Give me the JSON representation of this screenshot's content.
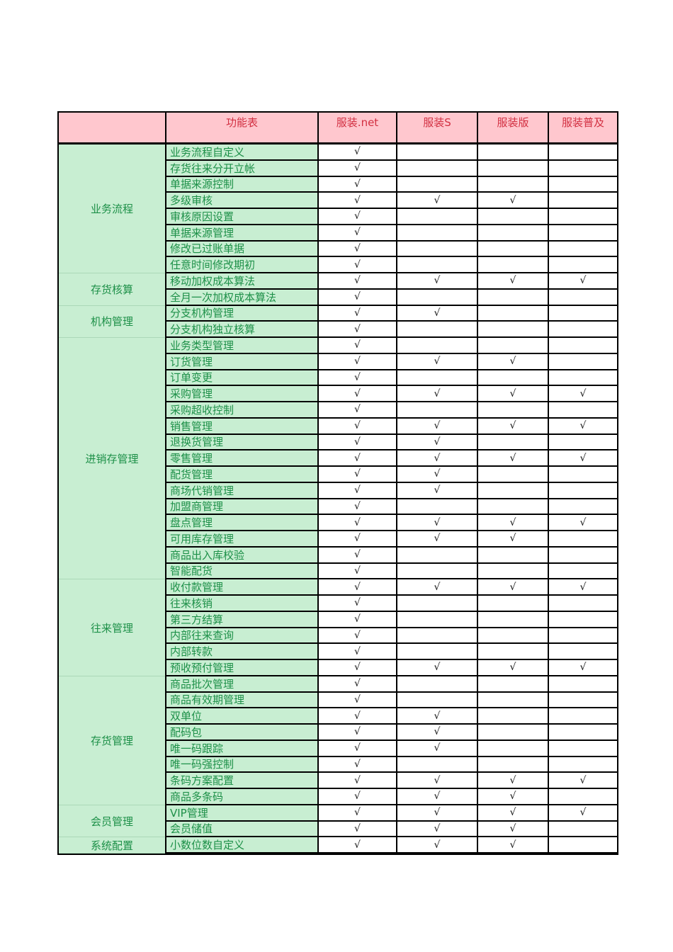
{
  "colors": {
    "header_bg": "#ffc7ce",
    "header_text": "#d22f41",
    "group_bg": "#c8eed2",
    "group_text": "#1d9048",
    "group_divider": "#abd8b8",
    "check_color": "#111111",
    "border": "#000000"
  },
  "table": {
    "header": {
      "corner": "",
      "feature_col": "功能表",
      "products": [
        "服装.net",
        "服装S",
        "服装版",
        "服装普及"
      ]
    },
    "check_symbol": "√",
    "groups": [
      {
        "label": "业务流程",
        "rows": [
          {
            "feature": "业务流程自定义",
            "checks": [
              1,
              0,
              0,
              0
            ]
          },
          {
            "feature": "存货往来分开立帐",
            "checks": [
              1,
              0,
              0,
              0
            ]
          },
          {
            "feature": "单据来源控制",
            "checks": [
              1,
              0,
              0,
              0
            ]
          },
          {
            "feature": "多级审核",
            "checks": [
              1,
              1,
              1,
              0
            ]
          },
          {
            "feature": "审核原因设置",
            "checks": [
              1,
              0,
              0,
              0
            ]
          },
          {
            "feature": "单据来源管理",
            "checks": [
              1,
              0,
              0,
              0
            ]
          },
          {
            "feature": "修改已过账单据",
            "checks": [
              1,
              0,
              0,
              0
            ]
          },
          {
            "feature": "任意时间修改期初",
            "checks": [
              1,
              0,
              0,
              0
            ]
          }
        ]
      },
      {
        "label": "存货核算",
        "rows": [
          {
            "feature": "移动加权成本算法",
            "checks": [
              1,
              1,
              1,
              1
            ]
          },
          {
            "feature": "全月一次加权成本算法",
            "checks": [
              1,
              0,
              0,
              0
            ]
          }
        ]
      },
      {
        "label": "机构管理",
        "rows": [
          {
            "feature": "分支机构管理",
            "checks": [
              1,
              1,
              0,
              0
            ]
          },
          {
            "feature": "分支机构独立核算",
            "checks": [
              1,
              0,
              0,
              0
            ]
          }
        ]
      },
      {
        "label": "进销存管理",
        "rows": [
          {
            "feature": "业务类型管理",
            "checks": [
              1,
              0,
              0,
              0
            ]
          },
          {
            "feature": "订货管理",
            "checks": [
              1,
              1,
              1,
              0
            ]
          },
          {
            "feature": "订单变更",
            "checks": [
              1,
              0,
              0,
              0
            ]
          },
          {
            "feature": "采购管理",
            "checks": [
              1,
              1,
              1,
              1
            ]
          },
          {
            "feature": "采购超收控制",
            "checks": [
              1,
              0,
              0,
              0
            ]
          },
          {
            "feature": "销售管理",
            "checks": [
              1,
              1,
              1,
              1
            ]
          },
          {
            "feature": "退换货管理",
            "checks": [
              1,
              1,
              0,
              0
            ]
          },
          {
            "feature": "零售管理",
            "checks": [
              1,
              1,
              1,
              1
            ]
          },
          {
            "feature": "配货管理",
            "checks": [
              1,
              1,
              0,
              0
            ]
          },
          {
            "feature": "商场代销管理",
            "checks": [
              1,
              1,
              0,
              0
            ]
          },
          {
            "feature": "加盟商管理",
            "checks": [
              1,
              0,
              0,
              0
            ]
          },
          {
            "feature": "盘点管理",
            "checks": [
              1,
              1,
              1,
              1
            ]
          },
          {
            "feature": "可用库存管理",
            "checks": [
              1,
              1,
              1,
              0
            ]
          },
          {
            "feature": "商品出入库校验",
            "checks": [
              1,
              0,
              0,
              0
            ]
          },
          {
            "feature": "智能配货",
            "checks": [
              1,
              0,
              0,
              0
            ]
          }
        ]
      },
      {
        "label": "往来管理",
        "rows": [
          {
            "feature": "收付款管理",
            "checks": [
              1,
              1,
              1,
              1
            ]
          },
          {
            "feature": "往来核销",
            "checks": [
              1,
              0,
              0,
              0
            ]
          },
          {
            "feature": "第三方结算",
            "checks": [
              1,
              0,
              0,
              0
            ]
          },
          {
            "feature": "内部往来查询",
            "checks": [
              1,
              0,
              0,
              0
            ]
          },
          {
            "feature": "内部转款",
            "checks": [
              1,
              0,
              0,
              0
            ]
          },
          {
            "feature": "预收预付管理",
            "checks": [
              1,
              1,
              1,
              1
            ]
          }
        ]
      },
      {
        "label": "存货管理",
        "rows": [
          {
            "feature": "商品批次管理",
            "checks": [
              1,
              0,
              0,
              0
            ]
          },
          {
            "feature": "商品有效期管理",
            "checks": [
              1,
              0,
              0,
              0
            ]
          },
          {
            "feature": "双单位",
            "checks": [
              1,
              1,
              0,
              0
            ]
          },
          {
            "feature": "配码包",
            "checks": [
              1,
              1,
              0,
              0
            ]
          },
          {
            "feature": "唯一码跟踪",
            "checks": [
              1,
              1,
              0,
              0
            ]
          },
          {
            "feature": "唯一码强控制",
            "checks": [
              1,
              0,
              0,
              0
            ]
          },
          {
            "feature": "条码方案配置",
            "checks": [
              1,
              1,
              1,
              1
            ]
          },
          {
            "feature": "商品多条码",
            "checks": [
              1,
              1,
              1,
              0
            ]
          }
        ]
      },
      {
        "label": "会员管理",
        "rows": [
          {
            "feature": "VIP管理",
            "checks": [
              1,
              1,
              1,
              1
            ]
          },
          {
            "feature": "会员储值",
            "checks": [
              1,
              1,
              1,
              0
            ]
          }
        ]
      },
      {
        "label": "系统配置",
        "rows": [
          {
            "feature": "小数位数自定义",
            "checks": [
              1,
              1,
              1,
              0
            ]
          }
        ]
      }
    ]
  }
}
